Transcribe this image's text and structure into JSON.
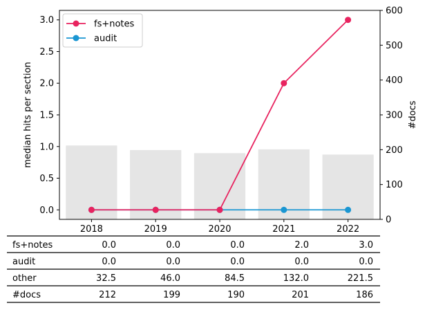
{
  "chart_data": {
    "type": "line",
    "categories": [
      "2018",
      "2019",
      "2020",
      "2021",
      "2022"
    ],
    "series": [
      {
        "name": "fs+notes",
        "values": [
          0.0,
          0.0,
          0.0,
          2.0,
          3.0
        ],
        "color": "#e8235f"
      },
      {
        "name": "audit",
        "values": [
          0.0,
          0.0,
          0.0,
          0.0,
          0.0
        ],
        "color": "#1a96d2"
      }
    ],
    "bars": {
      "axis": "right",
      "values": [
        212,
        199,
        190,
        201,
        186
      ],
      "color": "#e5e5e5"
    },
    "ylabel": "median hits per section",
    "y2label": "#docs",
    "ylim": [
      -0.15,
      3.15
    ],
    "y2lim": [
      0,
      600
    ],
    "yticks": [
      "0.0",
      "0.5",
      "1.0",
      "1.5",
      "2.0",
      "2.5",
      "3.0"
    ],
    "y2ticks": [
      "0",
      "100",
      "200",
      "300",
      "400",
      "500",
      "600"
    ],
    "legend": "top-left",
    "table": {
      "rows": [
        {
          "label": "fs+notes",
          "cells": [
            "0.0",
            "0.0",
            "0.0",
            "2.0",
            "3.0"
          ]
        },
        {
          "label": "audit",
          "cells": [
            "0.0",
            "0.0",
            "0.0",
            "0.0",
            "0.0"
          ]
        },
        {
          "label": "other",
          "cells": [
            "32.5",
            "46.0",
            "84.5",
            "132.0",
            "221.5"
          ]
        },
        {
          "label": "#docs",
          "cells": [
            "212",
            "199",
            "190",
            "201",
            "186"
          ]
        }
      ]
    }
  }
}
